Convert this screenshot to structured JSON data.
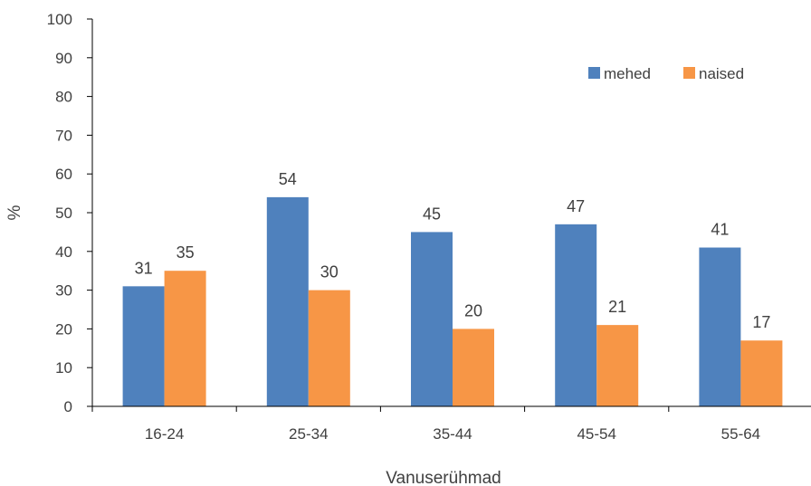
{
  "chart_data": {
    "type": "bar",
    "categories": [
      "16-24",
      "25-34",
      "35-44",
      "45-54",
      "55-64"
    ],
    "series": [
      {
        "name": "mehed",
        "values": [
          31,
          54,
          45,
          47,
          41
        ],
        "color": "#4f81bd"
      },
      {
        "name": "naised",
        "values": [
          35,
          30,
          20,
          21,
          17
        ],
        "color": "#f79646"
      }
    ],
    "xlabel": "Vanuserühmad",
    "ylabel": "%",
    "ylim": [
      0,
      100
    ],
    "yticks": [
      "0",
      "10",
      "20",
      "30",
      "40",
      "50",
      "60",
      "70",
      "80",
      "90",
      "100"
    ],
    "grid": false,
    "legend_position": "top-right",
    "data_labels": true
  }
}
